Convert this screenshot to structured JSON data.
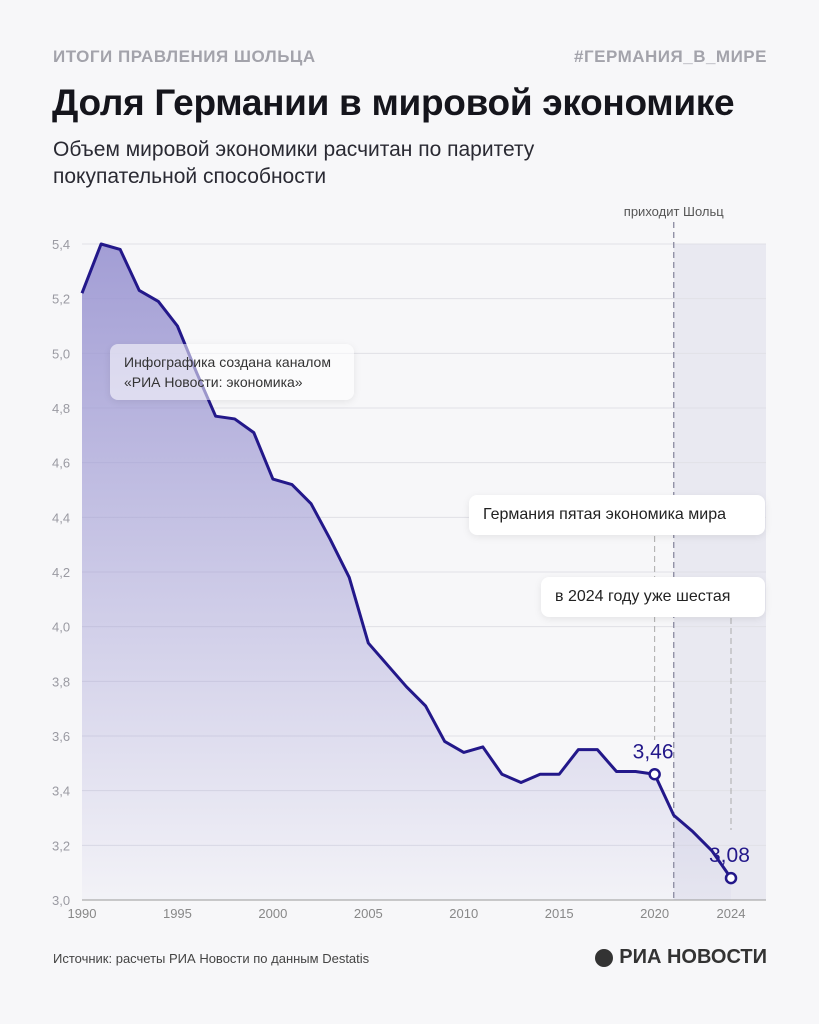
{
  "header": {
    "kicker": "ИТОГИ ПРАВЛЕНИЯ ШОЛЬЦА",
    "hashtag": "#ГЕРМАНИЯ_В_МИРЕ",
    "title": "Доля Германии в мировой экономике",
    "subtitle": "Объем мировой экономики расчитан по паритету покупательной способности"
  },
  "credit": "Инфографика создана каналом «РИА Новости: экономика»",
  "footer": {
    "source": "Источник: расчеты РИА Новости по данным Destatis",
    "logo": "РИА НОВОСТИ"
  },
  "chart_data": {
    "type": "area",
    "x": [
      1990,
      1991,
      1992,
      1993,
      1994,
      1995,
      1996,
      1997,
      1998,
      1999,
      2000,
      2001,
      2002,
      2003,
      2004,
      2005,
      2006,
      2007,
      2008,
      2009,
      2010,
      2011,
      2012,
      2013,
      2014,
      2015,
      2016,
      2017,
      2018,
      2019,
      2020,
      2021,
      2022,
      2023,
      2024
    ],
    "values": [
      5.22,
      5.4,
      5.38,
      5.23,
      5.19,
      5.1,
      4.93,
      4.77,
      4.76,
      4.71,
      4.54,
      4.52,
      4.45,
      4.32,
      4.18,
      3.94,
      3.86,
      3.78,
      3.71,
      3.58,
      3.54,
      3.56,
      3.46,
      3.43,
      3.46,
      3.46,
      3.55,
      3.55,
      3.47,
      3.47,
      3.46,
      3.31,
      3.25,
      3.18,
      3.08
    ],
    "ylim": [
      3.0,
      5.4
    ],
    "yticks": [
      "3,0",
      "3,2",
      "3,4",
      "3,6",
      "3,8",
      "4,0",
      "4,2",
      "4,4",
      "4,6",
      "4,8",
      "5,0",
      "5,2",
      "5,4"
    ],
    "xticks": [
      "1990",
      "1995",
      "2000",
      "2005",
      "2010",
      "2015",
      "2020",
      "2024"
    ],
    "grid": true,
    "line_color": "#23188a",
    "fill_color": "#9e99d3",
    "highlight": {
      "from": 2021,
      "label": "приходит Шольц",
      "marker_year": 2021
    },
    "labels": [
      {
        "year": 2020,
        "text": "3,46"
      },
      {
        "year": 2024,
        "text": "3,08"
      }
    ],
    "annotations": [
      "Германия пятая экономика мира",
      "в 2024 году уже шестая"
    ]
  }
}
